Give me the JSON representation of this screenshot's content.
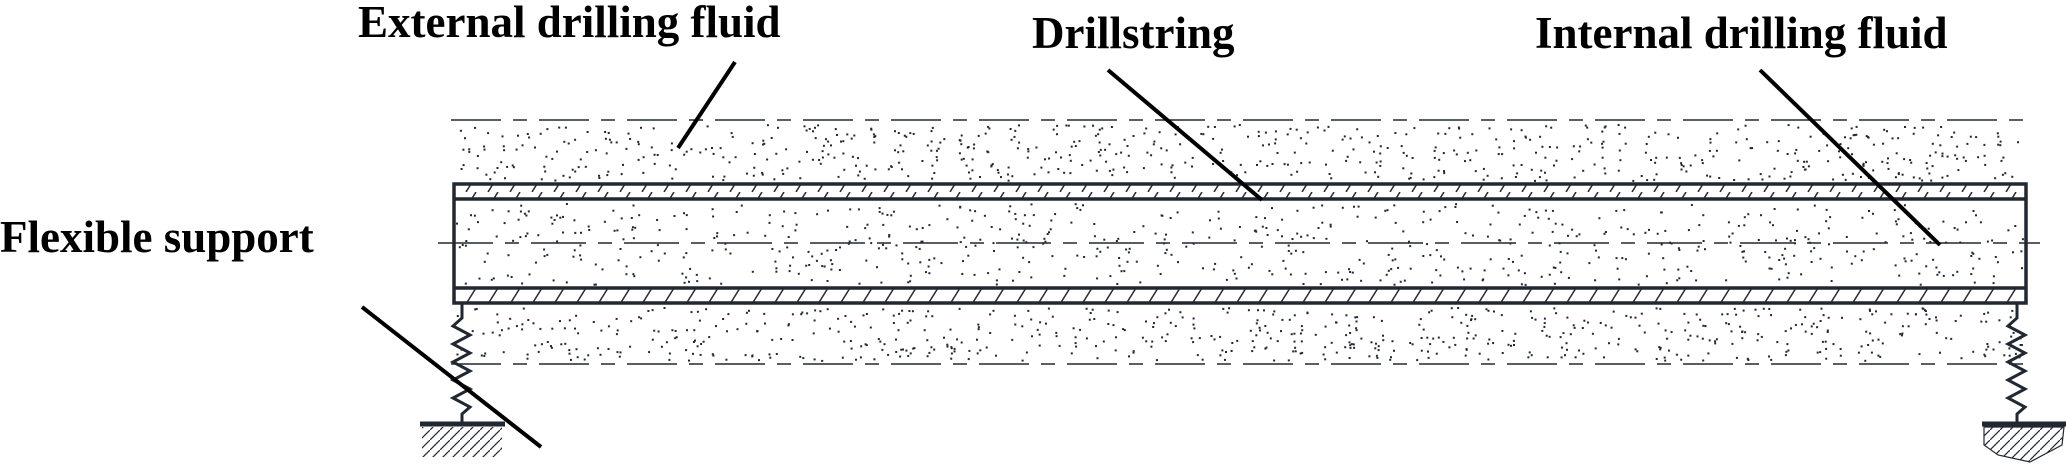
{
  "labels": {
    "external_fluid": "External drilling fluid",
    "drillstring": "Drillstring",
    "internal_fluid": "Internal drilling fluid",
    "flexible_support": "Flexible support"
  },
  "colors": {
    "line": "#222831",
    "leader": "#000000"
  }
}
